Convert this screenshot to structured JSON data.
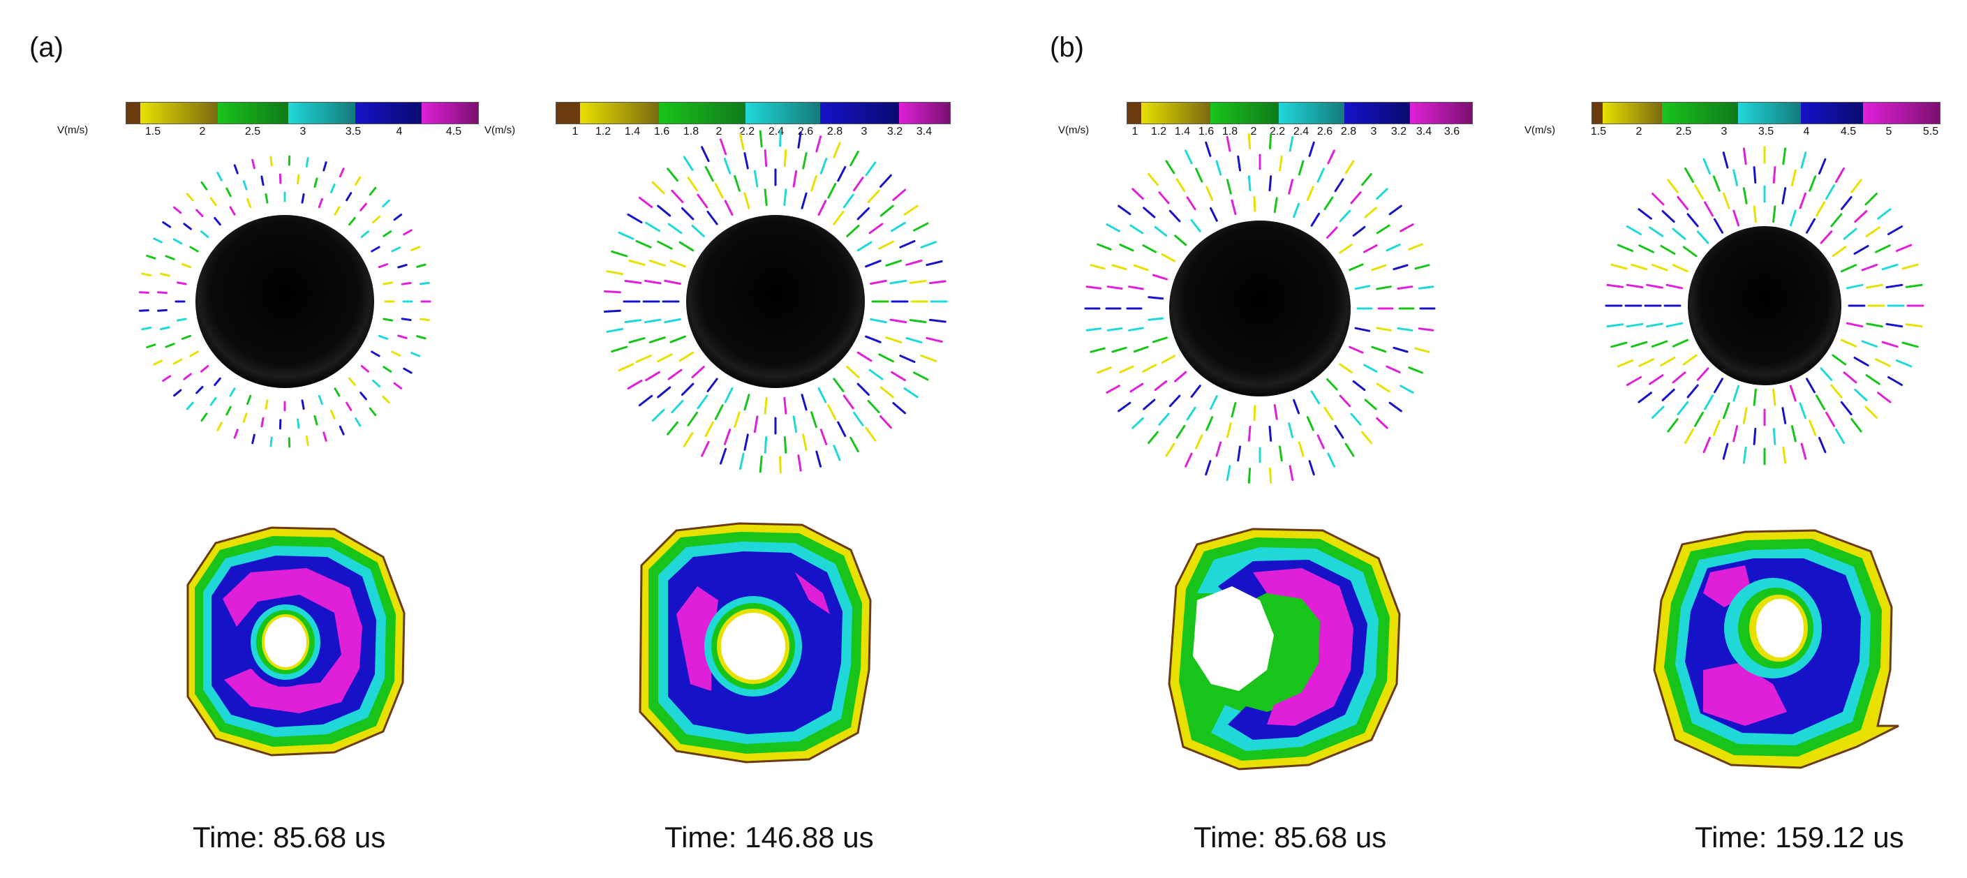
{
  "panel_labels": [
    "(a)",
    "(b)"
  ],
  "colors": {
    "brown": "#6b3a0e",
    "yellow": "#e8e000",
    "green": "#19c41a",
    "cyan": "#20d8d8",
    "blue": "#1512c8",
    "magenta": "#e020d8",
    "black": "#0c0c0c"
  },
  "columns": [
    {
      "colorbar_label": "V(m/s)",
      "ticks": [
        "1.5",
        "2",
        "2.5",
        "3",
        "3.5",
        "4",
        "4.5"
      ],
      "time": "Time: 85.68 us"
    },
    {
      "colorbar_label": "V(m/s)",
      "ticks": [
        "1",
        "1.2",
        "1.4",
        "1.6",
        "1.8",
        "2",
        "2.2",
        "2.4",
        "2.6",
        "2.8",
        "3",
        "3.2",
        "3.4"
      ],
      "time": "Time: 146.88 us"
    },
    {
      "colorbar_label": "V(m/s)",
      "ticks": [
        "1",
        "1.2",
        "1.4",
        "1.6",
        "1.8",
        "2",
        "2.2",
        "2.4",
        "2.6",
        "2.8",
        "3",
        "3.2",
        "3.4",
        "3.6"
      ],
      "time": "Time: 85.68 us"
    },
    {
      "colorbar_label": "V(m/s)",
      "ticks": [
        "1.5",
        "2",
        "2.5",
        "3",
        "3.5",
        "4",
        "4.5",
        "5",
        "5.5"
      ],
      "time": "Time: 159.12 us"
    }
  ]
}
